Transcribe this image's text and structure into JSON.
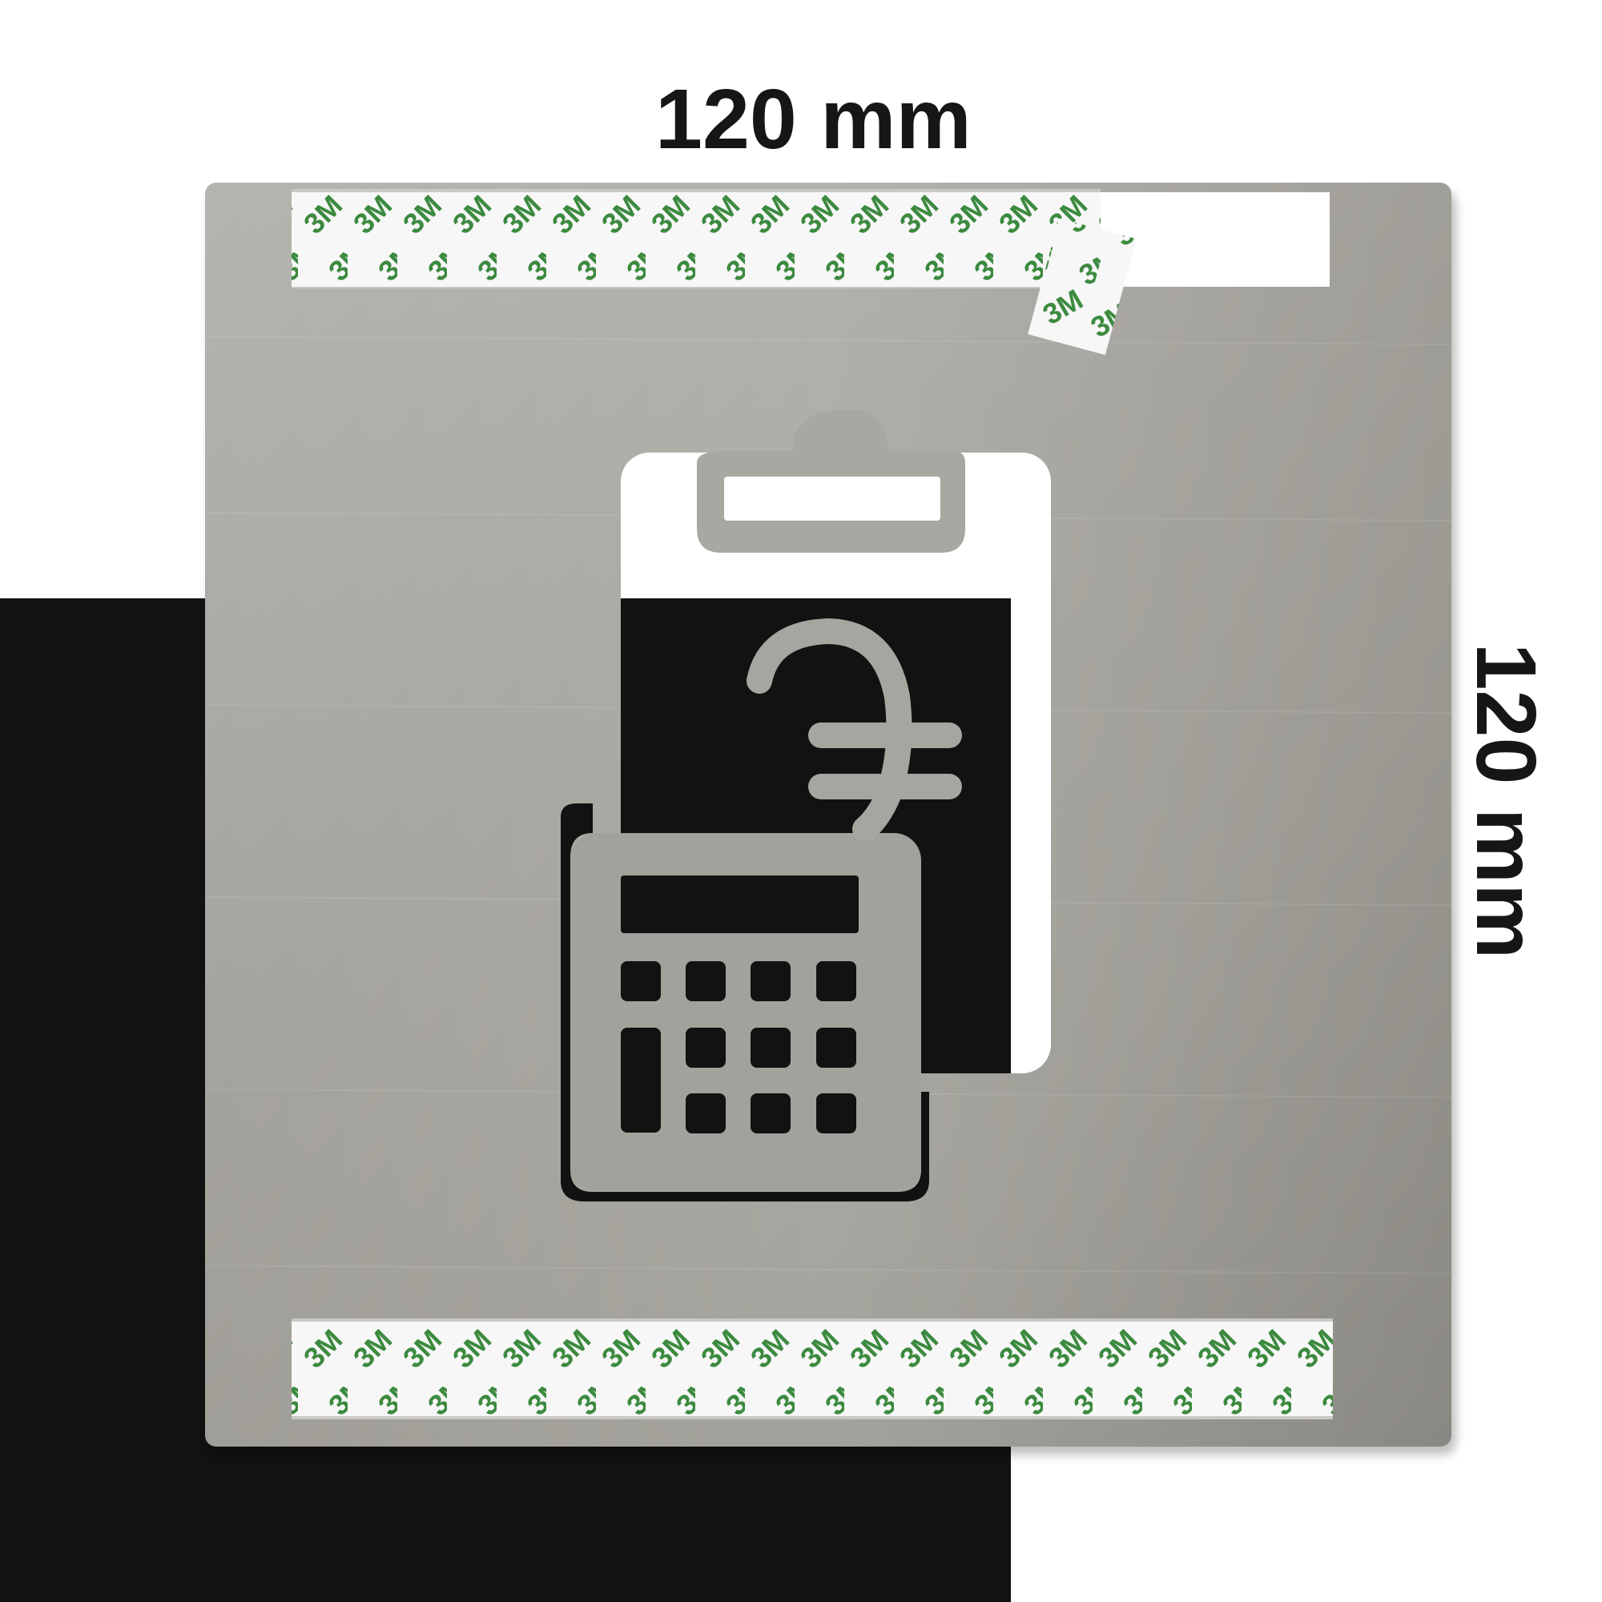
{
  "dimensions": {
    "width_label": "120 mm",
    "height_label": "120 mm"
  },
  "plate": {
    "material": "brushed stainless steel",
    "pictogram": "calculator-with-euro-on-clipboard",
    "tape_logo_text": "3M",
    "colors": {
      "steel_light": "#b9b7b2",
      "steel_dark": "#8c8a84",
      "tape_green": "#3c8a3f",
      "tape_white": "#f7f7f7",
      "backdrop_black": "#121212",
      "text": "#161616"
    }
  }
}
